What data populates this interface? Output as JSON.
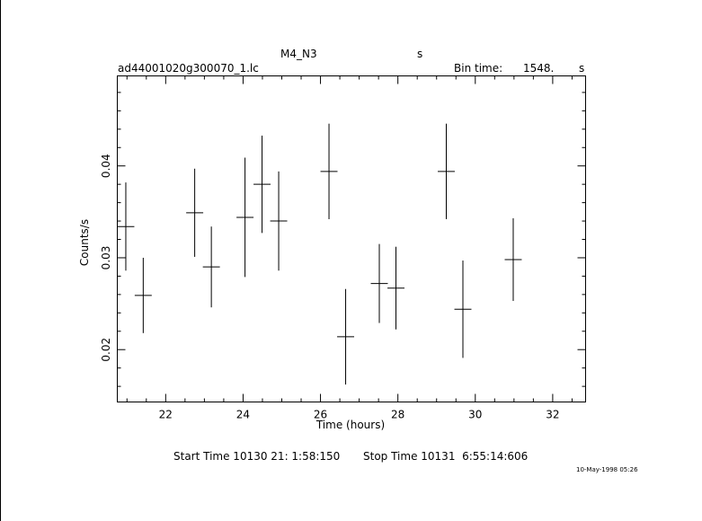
{
  "header": {
    "title": "M4_N3",
    "title_unit": "s",
    "filename": "ad44001020g300070_1.lc",
    "bin_time_label": "Bin time:",
    "bin_time_value": "1548.",
    "bin_time_unit": "s"
  },
  "footer": {
    "start_time": "Start Time 10130 21: 1:58:150",
    "stop_time": "Stop Time 10131  6:55:14:606",
    "timestamp": "10-May-1998 05:26"
  },
  "chart_data": {
    "type": "scatter",
    "xlabel": "Time (hours)",
    "ylabel": "Counts/s",
    "xlim": [
      20.75,
      32.85
    ],
    "ylim": [
      0.0143,
      0.0498
    ],
    "xticks": [
      22,
      24,
      26,
      28,
      30,
      32
    ],
    "yticks": [
      0.02,
      0.03,
      0.04
    ],
    "xtick_labels": [
      "22",
      "24",
      "26",
      "28",
      "30",
      "32"
    ],
    "ytick_labels": [
      "0.02",
      "0.03",
      "0.04"
    ],
    "grid": false,
    "points": [
      {
        "x": 20.97,
        "y": 0.0334,
        "xerr": 0.22,
        "yerr": 0.0048
      },
      {
        "x": 21.42,
        "y": 0.0259,
        "xerr": 0.22,
        "yerr": 0.0041
      },
      {
        "x": 22.75,
        "y": 0.0349,
        "xerr": 0.22,
        "yerr": 0.0048
      },
      {
        "x": 23.18,
        "y": 0.029,
        "xerr": 0.22,
        "yerr": 0.0044
      },
      {
        "x": 24.05,
        "y": 0.0344,
        "xerr": 0.22,
        "yerr": 0.0065
      },
      {
        "x": 24.49,
        "y": 0.038,
        "xerr": 0.22,
        "yerr": 0.0053
      },
      {
        "x": 24.92,
        "y": 0.034,
        "xerr": 0.22,
        "yerr": 0.0054
      },
      {
        "x": 26.22,
        "y": 0.0394,
        "xerr": 0.22,
        "yerr": 0.0052
      },
      {
        "x": 26.65,
        "y": 0.0214,
        "xerr": 0.22,
        "yerr": 0.0052
      },
      {
        "x": 27.52,
        "y": 0.0272,
        "xerr": 0.22,
        "yerr": 0.0043
      },
      {
        "x": 27.95,
        "y": 0.0267,
        "xerr": 0.22,
        "yerr": 0.0045
      },
      {
        "x": 29.25,
        "y": 0.0394,
        "xerr": 0.22,
        "yerr": 0.0052
      },
      {
        "x": 29.68,
        "y": 0.0244,
        "xerr": 0.22,
        "yerr": 0.0053
      },
      {
        "x": 30.98,
        "y": 0.0298,
        "xerr": 0.22,
        "yerr": 0.0045
      }
    ]
  }
}
